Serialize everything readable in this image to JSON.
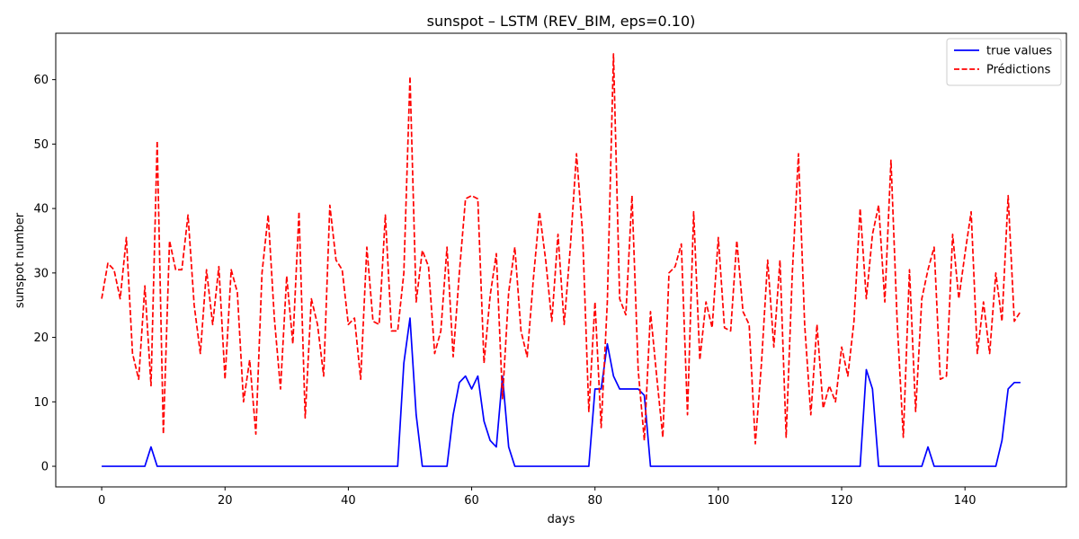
{
  "chart_data": {
    "type": "line",
    "title": "sunspot – LSTM (REV_BIM, eps=0.10)",
    "xlabel": "days",
    "ylabel": "sunspot number",
    "xlim": [
      -7.45,
      156.45
    ],
    "ylim": [
      -3.2,
      67.2
    ],
    "xticks": [
      0,
      20,
      40,
      60,
      80,
      100,
      120,
      140
    ],
    "yticks": [
      0,
      10,
      20,
      30,
      40,
      50,
      60
    ],
    "grid": false,
    "legend_position": "top-right",
    "series": [
      {
        "name": "true values",
        "color": "#0000ff",
        "style": "solid",
        "x": [
          0,
          1,
          2,
          3,
          4,
          5,
          6,
          7,
          8,
          9,
          10,
          11,
          12,
          13,
          14,
          15,
          16,
          17,
          18,
          19,
          20,
          21,
          22,
          23,
          24,
          25,
          26,
          27,
          28,
          29,
          30,
          31,
          32,
          33,
          34,
          35,
          36,
          37,
          38,
          39,
          40,
          41,
          42,
          43,
          44,
          45,
          46,
          47,
          48,
          49,
          50,
          51,
          52,
          53,
          54,
          55,
          56,
          57,
          58,
          59,
          60,
          61,
          62,
          63,
          64,
          65,
          66,
          67,
          68,
          69,
          70,
          71,
          72,
          73,
          74,
          75,
          76,
          77,
          78,
          79,
          80,
          81,
          82,
          83,
          84,
          85,
          86,
          87,
          88,
          89,
          90,
          91,
          92,
          93,
          94,
          95,
          96,
          97,
          98,
          99,
          100,
          101,
          102,
          103,
          104,
          105,
          106,
          107,
          108,
          109,
          110,
          111,
          112,
          113,
          114,
          115,
          116,
          117,
          118,
          119,
          120,
          121,
          122,
          123,
          124,
          125,
          126,
          127,
          128,
          129,
          130,
          131,
          132,
          133,
          134,
          135,
          136,
          137,
          138,
          139,
          140,
          141,
          142,
          143,
          144,
          145,
          146,
          147,
          148,
          149
        ],
        "values": [
          0,
          0,
          0,
          0,
          0,
          0,
          0,
          0,
          3,
          0,
          0,
          0,
          0,
          0,
          0,
          0,
          0,
          0,
          0,
          0,
          0,
          0,
          0,
          0,
          0,
          0,
          0,
          0,
          0,
          0,
          0,
          0,
          0,
          0,
          0,
          0,
          0,
          0,
          0,
          0,
          0,
          0,
          0,
          0,
          0,
          0,
          0,
          0,
          0,
          16,
          23,
          8,
          0,
          0,
          0,
          0,
          0,
          8,
          13,
          14,
          12,
          14,
          7,
          4,
          3,
          14,
          3,
          0,
          0,
          0,
          0,
          0,
          0,
          0,
          0,
          0,
          0,
          0,
          0,
          0,
          12,
          12,
          19,
          14,
          12,
          12,
          12,
          12,
          11,
          0,
          0,
          0,
          0,
          0,
          0,
          0,
          0,
          0,
          0,
          0,
          0,
          0,
          0,
          0,
          0,
          0,
          0,
          0,
          0,
          0,
          0,
          0,
          0,
          0,
          0,
          0,
          0,
          0,
          0,
          0,
          0,
          0,
          0,
          0,
          15,
          12,
          0,
          0,
          0,
          0,
          0,
          0,
          0,
          0,
          3,
          0,
          0,
          0,
          0,
          0,
          0,
          0,
          0,
          0,
          0,
          0,
          4,
          12,
          13,
          13
        ]
      },
      {
        "name": "Prédictions",
        "color": "#ff0000",
        "style": "dashed",
        "x": [
          0,
          1,
          2,
          3,
          4,
          5,
          6,
          7,
          8,
          9,
          10,
          11,
          12,
          13,
          14,
          15,
          16,
          17,
          18,
          19,
          20,
          21,
          22,
          23,
          24,
          25,
          26,
          27,
          28,
          29,
          30,
          31,
          32,
          33,
          34,
          35,
          36,
          37,
          38,
          39,
          40,
          41,
          42,
          43,
          44,
          45,
          46,
          47,
          48,
          49,
          50,
          51,
          52,
          53,
          54,
          55,
          56,
          57,
          58,
          59,
          60,
          61,
          62,
          63,
          64,
          65,
          66,
          67,
          68,
          69,
          70,
          71,
          72,
          73,
          74,
          75,
          76,
          77,
          78,
          79,
          80,
          81,
          82,
          83,
          84,
          85,
          86,
          87,
          88,
          89,
          90,
          91,
          92,
          93,
          94,
          95,
          96,
          97,
          98,
          99,
          100,
          101,
          102,
          103,
          104,
          105,
          106,
          107,
          108,
          109,
          110,
          111,
          112,
          113,
          114,
          115,
          116,
          117,
          118,
          119,
          120,
          121,
          122,
          123,
          124,
          125,
          126,
          127,
          128,
          129,
          130,
          131,
          132,
          133,
          134,
          135,
          136,
          137,
          138,
          139,
          140,
          141,
          142,
          143,
          144,
          145,
          146,
          147,
          148,
          149
        ],
        "values": [
          26,
          31.5,
          30.5,
          26,
          35.5,
          17.5,
          13.5,
          28,
          12.5,
          50.5,
          5,
          35,
          30.5,
          30.5,
          39,
          25,
          17.5,
          30.5,
          22,
          31,
          13.5,
          30.5,
          27,
          10,
          16.5,
          5,
          30,
          39,
          23,
          12,
          29.5,
          19,
          39.5,
          7.5,
          26,
          22,
          14,
          40.5,
          32,
          30.5,
          22,
          23,
          13.5,
          34,
          22.5,
          22,
          39,
          21,
          21,
          30,
          60.5,
          25.5,
          33.5,
          31,
          17.5,
          21,
          34,
          17,
          30,
          41.5,
          42,
          41.5,
          16,
          26.5,
          33,
          10.5,
          27,
          34,
          21,
          17,
          29,
          39.5,
          32,
          22.5,
          36,
          22,
          34,
          48.5,
          36,
          8.5,
          25.5,
          6,
          25.5,
          64,
          26,
          23.5,
          42,
          15,
          4,
          24,
          14,
          4.5,
          30,
          31,
          34.5,
          8,
          39.5,
          16.5,
          25.5,
          21.5,
          35.5,
          21.5,
          21,
          35,
          24,
          22,
          3.5,
          16,
          32,
          18.5,
          32,
          4.5,
          30,
          48.5,
          22,
          8,
          22,
          9,
          12.5,
          10,
          18.5,
          14,
          22.5,
          40,
          26,
          36,
          40.5,
          25.5,
          47.5,
          22.5,
          4.5,
          30.5,
          8.5,
          26,
          30.5,
          34,
          13.5,
          14,
          36,
          26,
          33,
          39.5,
          17.5,
          25.5,
          17.5,
          30,
          22.5,
          42,
          22.5,
          24
        ]
      }
    ]
  }
}
